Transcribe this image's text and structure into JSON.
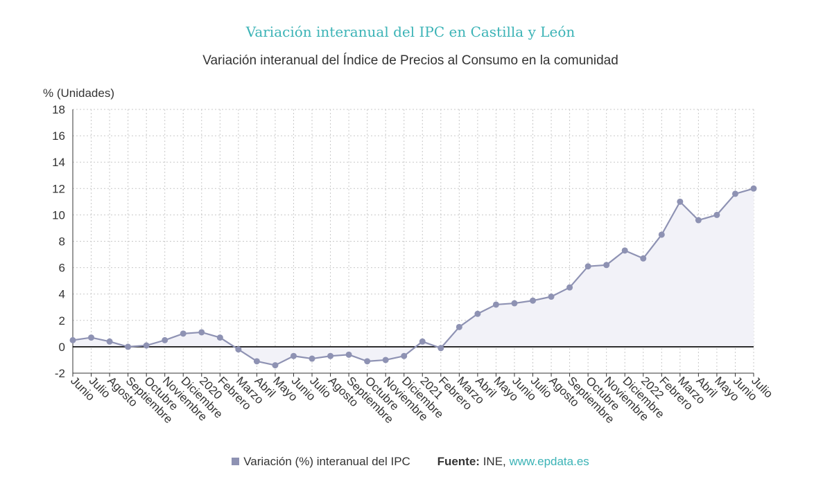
{
  "title": "Variación interanual del IPC en Castilla y León",
  "subtitle": "Variación interanual del Índice de Precios al Consumo en la comunidad",
  "colors": {
    "title": "#3bb3b6",
    "series": "#8e92b3",
    "fill": "#f2f2f8",
    "grid": "#c8c8c8",
    "zero_line": "#000000",
    "link": "#3bb3b6"
  },
  "legend": {
    "label": "Variación (%) interanual del IPC"
  },
  "source": {
    "label": "Fuente:",
    "text": "INE,",
    "link": "www.epdata.es"
  },
  "chart_data": {
    "type": "area",
    "ylabel": "% (Unidades)",
    "ylim": [
      -2,
      18
    ],
    "yticks": [
      -2,
      0,
      2,
      4,
      6,
      8,
      10,
      12,
      14,
      16,
      18
    ],
    "grid": true,
    "legend_position": "bottom",
    "categories": [
      "Junio",
      "Julio",
      "Agosto",
      "Septiembre",
      "Octubre",
      "Noviembre",
      "Diciembre",
      "2020",
      "Febrero",
      "Marzo",
      "Abril",
      "Mayo",
      "Junio",
      "Julio",
      "Agosto",
      "Septiembre",
      "Octubre",
      "Noviembre",
      "Diciembre",
      "2021",
      "Febrero",
      "Marzo",
      "Abril",
      "Mayo",
      "Junio",
      "Julio",
      "Agosto",
      "Septiembre",
      "Octubre",
      "Noviembre",
      "Diciembre",
      "2022",
      "Febrero",
      "Marzo",
      "Abril",
      "Mayo",
      "Junio",
      "Julio"
    ],
    "series": [
      {
        "name": "Variación (%) interanual del IPC",
        "values": [
          0.5,
          0.7,
          0.4,
          0.0,
          0.1,
          0.5,
          1.0,
          1.1,
          0.7,
          -0.2,
          -1.1,
          -1.4,
          -0.7,
          -0.9,
          -0.7,
          -0.6,
          -1.1,
          -1.0,
          -0.7,
          0.4,
          -0.1,
          1.5,
          2.5,
          3.2,
          3.3,
          3.5,
          3.8,
          4.5,
          6.1,
          6.2,
          7.3,
          6.7,
          8.5,
          11.0,
          9.6,
          10.0,
          11.6,
          12.0
        ]
      }
    ]
  }
}
